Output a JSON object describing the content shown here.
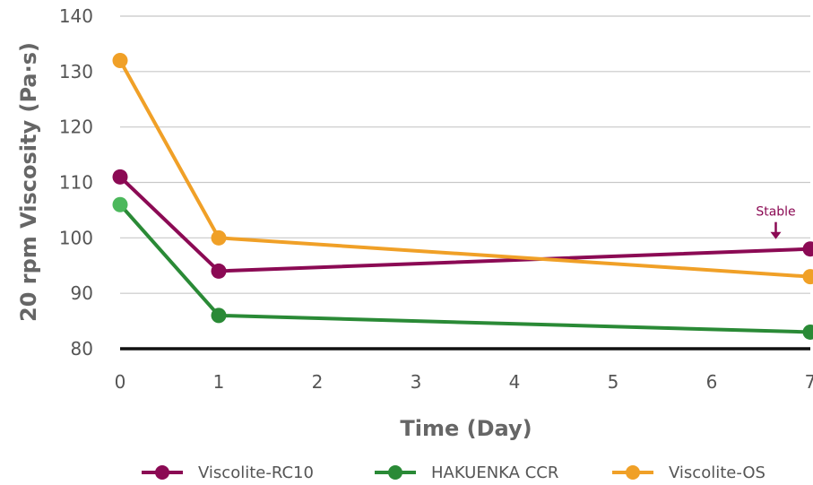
{
  "chart_data": {
    "type": "line",
    "title": "",
    "xlabel": "Time (Day)",
    "ylabel": "20 rpm Viscosity (Pa·s)",
    "x": [
      0,
      1,
      7
    ],
    "xlim": [
      0,
      7
    ],
    "ylim": [
      80,
      140
    ],
    "xticks": [
      "0",
      "1",
      "2",
      "3",
      "4",
      "5",
      "6",
      "7"
    ],
    "yticks": [
      "80",
      "90",
      "100",
      "110",
      "120",
      "130",
      "140"
    ],
    "grid": "horizontal",
    "legend_position": "bottom",
    "series": [
      {
        "name": "Viscolite-RC10",
        "color": "#8b0a54",
        "values": [
          111,
          94,
          98
        ]
      },
      {
        "name": "HAKUENKA CCR",
        "color": "#2a8a36",
        "values": [
          106,
          86,
          83
        ]
      },
      {
        "name": "Viscolite-OS",
        "color": "#f0a027",
        "values": [
          132,
          100,
          93
        ]
      }
    ],
    "annotations": [
      {
        "text": "Stable",
        "x": 6.65,
        "series": "Viscolite-RC10",
        "color": "#8b0a54"
      }
    ]
  }
}
